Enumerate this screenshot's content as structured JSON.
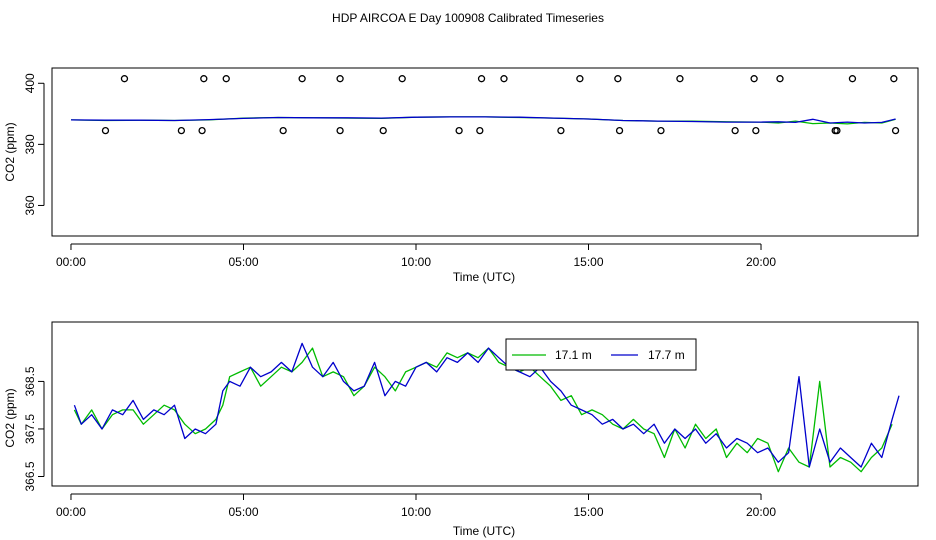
{
  "figure": {
    "title": "HDP AIRCOA E  Day 100908  Calibrated Timeseries"
  },
  "chart_data": [
    {
      "type": "line",
      "title": "",
      "xlabel": "Time (UTC)",
      "ylabel": "CO2 (ppm)",
      "xlim": [
        -0.55,
        24.55
      ],
      "ylim": [
        350,
        405
      ],
      "x_ticks": [
        0,
        5,
        10,
        15,
        20
      ],
      "x_tick_labels": [
        "00:00",
        "05:00",
        "10:00",
        "15:00",
        "20:00"
      ],
      "y_ticks": [
        360,
        380,
        400
      ],
      "y_tick_labels": [
        "360",
        "380",
        "400"
      ],
      "grid": false,
      "legend": "none",
      "series": [
        {
          "color": "#00bb00",
          "x": [
            0,
            1,
            2,
            3,
            4,
            5,
            6,
            7,
            8,
            9,
            10,
            11,
            12,
            13,
            14,
            15,
            16,
            17,
            18,
            19,
            20,
            20.5,
            21,
            21.5,
            22,
            22.5,
            23,
            23.5,
            23.9
          ],
          "y": [
            388.0,
            387.8,
            387.9,
            387.8,
            388.0,
            388.6,
            388.8,
            388.7,
            388.6,
            388.5,
            388.9,
            389.0,
            389.0,
            388.8,
            388.6,
            388.3,
            387.8,
            387.6,
            387.6,
            387.4,
            387.3,
            387.0,
            387.6,
            386.8,
            387.0,
            386.7,
            387.2,
            387.0,
            388.2
          ]
        },
        {
          "color": "#0000cc",
          "x": [
            0,
            1,
            2,
            3,
            4,
            5,
            6,
            7,
            8,
            9,
            10,
            11,
            12,
            13,
            14,
            15,
            16,
            17,
            18,
            19,
            20,
            20.5,
            21,
            21.5,
            22,
            22.5,
            23,
            23.5,
            23.9
          ],
          "y": [
            388.0,
            387.9,
            387.9,
            387.8,
            388.1,
            388.5,
            388.8,
            388.7,
            388.7,
            388.6,
            388.9,
            389.0,
            389.0,
            388.9,
            388.6,
            388.3,
            387.8,
            387.6,
            387.5,
            387.3,
            387.3,
            387.4,
            387.2,
            388.2,
            387.0,
            387.3,
            387.0,
            387.2,
            388.3
          ]
        },
        {
          "type": "scatter",
          "marker": "open-circle",
          "color": "#000000",
          "x": [
            1.0,
            1.55,
            3.2,
            3.8,
            3.85,
            4.5,
            6.15,
            6.7,
            7.8,
            7.8,
            9.05,
            9.6,
            11.25,
            11.85,
            11.9,
            12.55,
            14.2,
            14.75,
            15.9,
            15.85,
            17.1,
            17.65,
            19.25,
            19.85,
            19.8,
            20.55,
            22.15,
            22.2,
            22.65,
            23.85,
            23.9
          ],
          "y": [
            384.5,
            401.5,
            384.5,
            384.5,
            401.5,
            401.5,
            384.5,
            401.5,
            384.5,
            401.5,
            384.5,
            401.5,
            384.5,
            384.5,
            401.5,
            401.5,
            384.5,
            401.5,
            384.5,
            401.5,
            384.5,
            401.5,
            384.5,
            384.5,
            401.5,
            401.5,
            384.5,
            384.5,
            401.5,
            401.5,
            384.5
          ]
        }
      ]
    },
    {
      "type": "line",
      "title": "",
      "xlabel": "Time (UTC)",
      "ylabel": "CO2 (ppm)",
      "xlim": [
        -0.55,
        24.55
      ],
      "ylim": [
        366.3,
        369.75
      ],
      "x_ticks": [
        0,
        5,
        10,
        15,
        20
      ],
      "x_tick_labels": [
        "00:00",
        "05:00",
        "10:00",
        "15:00",
        "20:00"
      ],
      "y_ticks": [
        366.5,
        367.5,
        368.5
      ],
      "y_tick_labels": [
        "366.5",
        "367.5",
        "368.5"
      ],
      "grid": false,
      "legend": "top-right",
      "series": [
        {
          "name": "17.1 m",
          "color": "#00bb00",
          "x": [
            0.1,
            0.3,
            0.6,
            0.9,
            1.2,
            1.5,
            1.8,
            2.1,
            2.4,
            2.7,
            3.0,
            3.3,
            3.6,
            3.9,
            4.2,
            4.4,
            4.6,
            4.9,
            5.2,
            5.5,
            5.8,
            6.1,
            6.4,
            6.7,
            7.0,
            7.3,
            7.6,
            7.9,
            8.2,
            8.5,
            8.8,
            9.1,
            9.4,
            9.7,
            10.0,
            10.3,
            10.6,
            10.9,
            11.2,
            11.5,
            11.8,
            12.1,
            12.4,
            12.7,
            13.0,
            13.3,
            13.6,
            13.9,
            14.2,
            14.5,
            14.8,
            15.1,
            15.4,
            15.7,
            16.0,
            16.3,
            16.6,
            16.9,
            17.2,
            17.5,
            17.8,
            18.1,
            18.4,
            18.7,
            19.0,
            19.3,
            19.6,
            19.9,
            20.2,
            20.5,
            20.8,
            21.1,
            21.4,
            21.7,
            22.0,
            22.3,
            22.6,
            22.9,
            23.2,
            23.5,
            23.8
          ],
          "y": [
            367.9,
            367.6,
            367.9,
            367.5,
            367.8,
            367.9,
            367.9,
            367.6,
            367.8,
            368.0,
            367.9,
            367.6,
            367.4,
            367.5,
            367.7,
            368.0,
            368.6,
            368.7,
            368.8,
            368.4,
            368.6,
            368.8,
            368.7,
            368.9,
            369.2,
            368.6,
            368.7,
            368.6,
            368.2,
            368.4,
            368.8,
            368.6,
            368.3,
            368.7,
            368.8,
            368.9,
            368.8,
            369.1,
            369.0,
            369.1,
            369.0,
            369.2,
            368.9,
            368.8,
            368.7,
            368.8,
            368.6,
            368.4,
            368.1,
            368.2,
            367.8,
            367.9,
            367.8,
            367.6,
            367.5,
            367.7,
            367.5,
            367.4,
            366.9,
            367.5,
            367.1,
            367.6,
            367.3,
            367.5,
            366.9,
            367.2,
            367.0,
            367.3,
            367.2,
            366.6,
            367.1,
            366.8,
            366.7,
            368.5,
            366.7,
            366.9,
            366.8,
            366.6,
            366.9,
            367.1,
            367.6
          ]
        },
        {
          "name": "17.7 m",
          "color": "#0000cc",
          "x": [
            0.1,
            0.3,
            0.6,
            0.9,
            1.2,
            1.5,
            1.8,
            2.1,
            2.4,
            2.7,
            3.0,
            3.3,
            3.6,
            3.9,
            4.2,
            4.4,
            4.6,
            4.9,
            5.2,
            5.5,
            5.8,
            6.1,
            6.4,
            6.7,
            7.0,
            7.3,
            7.6,
            7.9,
            8.2,
            8.5,
            8.8,
            9.1,
            9.4,
            9.7,
            10.0,
            10.3,
            10.6,
            10.9,
            11.2,
            11.5,
            11.8,
            12.1,
            12.4,
            12.7,
            13.0,
            13.3,
            13.6,
            13.9,
            14.2,
            14.5,
            14.8,
            15.1,
            15.4,
            15.7,
            16.0,
            16.3,
            16.6,
            16.9,
            17.2,
            17.5,
            17.8,
            18.1,
            18.4,
            18.7,
            19.0,
            19.3,
            19.6,
            19.9,
            20.2,
            20.5,
            20.8,
            21.1,
            21.4,
            21.7,
            22.0,
            22.3,
            22.6,
            22.9,
            23.2,
            23.5,
            23.8,
            24.0
          ],
          "y": [
            368.0,
            367.6,
            367.8,
            367.5,
            367.9,
            367.8,
            368.1,
            367.7,
            367.9,
            367.8,
            368.0,
            367.3,
            367.5,
            367.4,
            367.6,
            368.3,
            368.5,
            368.4,
            368.8,
            368.6,
            368.7,
            368.9,
            368.7,
            369.3,
            368.8,
            368.6,
            368.9,
            368.5,
            368.3,
            368.4,
            368.9,
            368.2,
            368.5,
            368.4,
            368.8,
            368.9,
            368.7,
            369.0,
            368.9,
            369.1,
            368.9,
            369.2,
            369.0,
            368.8,
            368.7,
            368.6,
            368.8,
            368.5,
            368.3,
            368.0,
            367.9,
            367.8,
            367.6,
            367.7,
            367.5,
            367.6,
            367.4,
            367.6,
            367.2,
            367.5,
            367.3,
            367.5,
            367.2,
            367.4,
            367.1,
            367.3,
            367.2,
            367.0,
            367.1,
            366.8,
            367.0,
            368.6,
            366.7,
            367.5,
            366.8,
            367.1,
            366.9,
            366.7,
            367.2,
            366.9,
            367.7,
            368.2
          ]
        }
      ]
    }
  ]
}
